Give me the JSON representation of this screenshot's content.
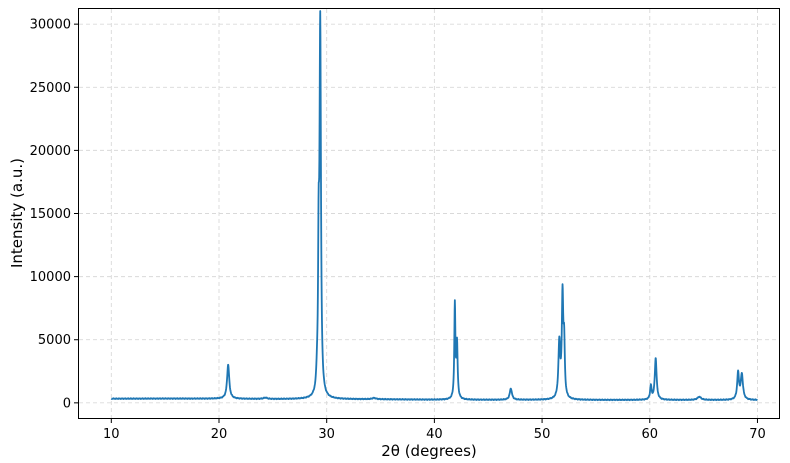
{
  "chart_data": {
    "type": "line",
    "title": "",
    "xlabel": "2θ (degrees)",
    "ylabel": "Intensity (a.u.)",
    "xlim": [
      7,
      72
    ],
    "ylim": [
      -1200,
      31200
    ],
    "xticks": [
      10,
      20,
      30,
      40,
      50,
      60,
      70
    ],
    "xtick_labels": [
      "10",
      "20",
      "30",
      "40",
      "50",
      "60",
      "70"
    ],
    "yticks": [
      0,
      5000,
      10000,
      15000,
      20000,
      25000,
      30000
    ],
    "ytick_labels": [
      "0",
      "5000",
      "10000",
      "15000",
      "20000",
      "25000",
      "30000"
    ],
    "grid": true,
    "series_color": "#1f77b4",
    "series": [
      {
        "baseline": [
          [
            10,
            330
          ],
          [
            15,
            340
          ],
          [
            20,
            330
          ],
          [
            25,
            300
          ],
          [
            30,
            300
          ],
          [
            35,
            280
          ],
          [
            40,
            250
          ],
          [
            45,
            240
          ],
          [
            50,
            240
          ],
          [
            55,
            230
          ],
          [
            60,
            230
          ],
          [
            65,
            230
          ],
          [
            70,
            220
          ]
        ],
        "peaks": [
          {
            "x": 20.85,
            "height": 2700,
            "width": 0.12
          },
          {
            "x": 24.3,
            "height": 100,
            "width": 0.2
          },
          {
            "x": 29.1,
            "height": 1000,
            "width": 0.08
          },
          {
            "x": 29.25,
            "height": 10000,
            "width": 0.06
          },
          {
            "x": 29.4,
            "height": 29300,
            "width": 0.08
          },
          {
            "x": 34.4,
            "height": 100,
            "width": 0.2
          },
          {
            "x": 41.9,
            "height": 7400,
            "width": 0.06
          },
          {
            "x": 42.1,
            "height": 4300,
            "width": 0.07
          },
          {
            "x": 47.1,
            "height": 900,
            "width": 0.12
          },
          {
            "x": 51.6,
            "height": 4400,
            "width": 0.1
          },
          {
            "x": 51.9,
            "height": 8000,
            "width": 0.08
          },
          {
            "x": 52.05,
            "height": 4000,
            "width": 0.07
          },
          {
            "x": 60.1,
            "height": 1100,
            "width": 0.08
          },
          {
            "x": 60.55,
            "height": 3300,
            "width": 0.1
          },
          {
            "x": 64.6,
            "height": 250,
            "width": 0.2
          },
          {
            "x": 68.2,
            "height": 2100,
            "width": 0.1
          },
          {
            "x": 68.55,
            "height": 2000,
            "width": 0.12
          }
        ]
      }
    ]
  }
}
